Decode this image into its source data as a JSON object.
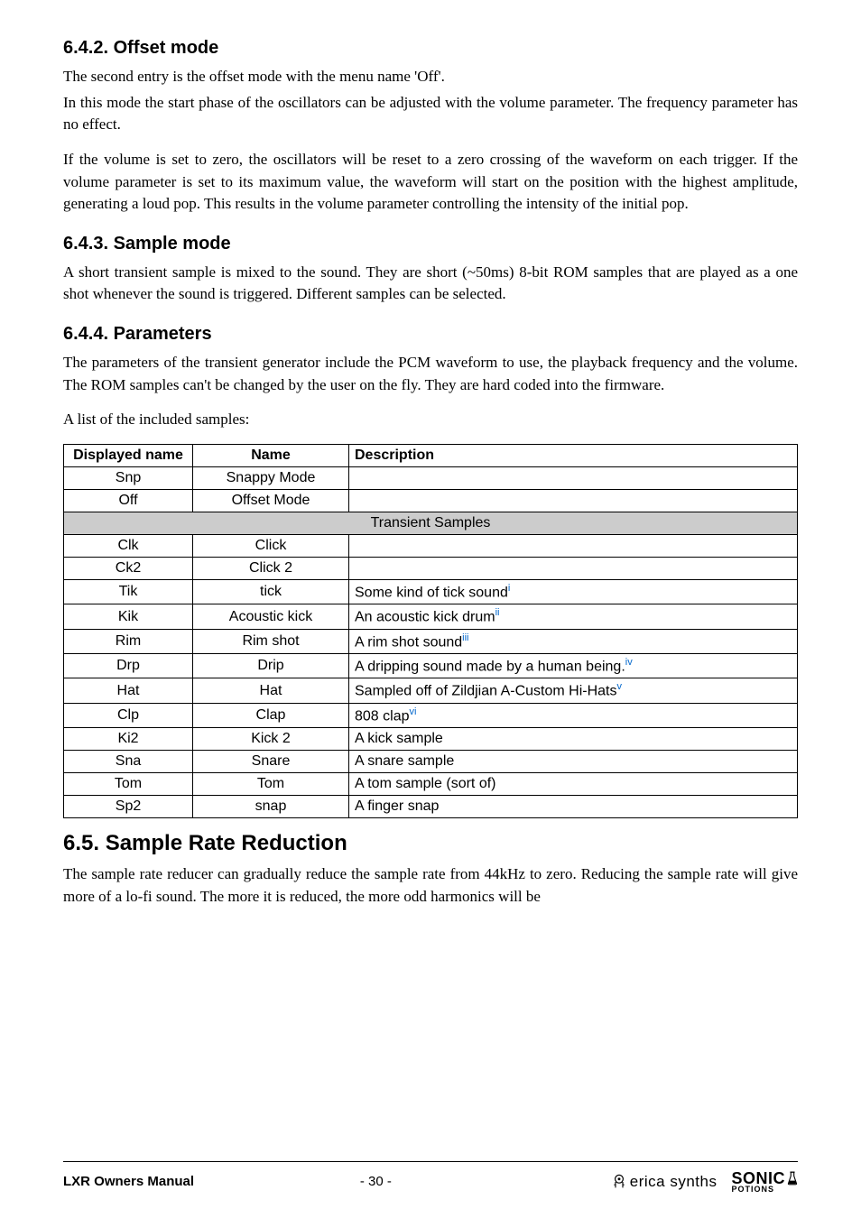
{
  "sections": {
    "s642": {
      "heading": "6.4.2. Offset mode",
      "p1": "The second entry is the offset mode with the menu name 'Off'.",
      "p2": "In this mode the start phase of the oscillators can be adjusted with the volume parameter. The frequency parameter has no effect.",
      "p3": "If the volume is set to zero, the oscillators will be reset to a zero crossing of the waveform on each trigger. If the volume parameter is set to its maximum value, the waveform will start on the position with the highest amplitude, generating a loud pop. This results in the volume parameter controlling the intensity of the initial pop."
    },
    "s643": {
      "heading": "6.4.3. Sample mode",
      "p1": "A short transient sample is mixed to the sound. They are short (~50ms) 8-bit ROM samples that are played as a one shot whenever the sound is triggered. Different samples can be selected."
    },
    "s644": {
      "heading": "6.4.4. Parameters",
      "p1": "The parameters of the transient generator include the PCM waveform to use, the playback frequency and the volume. The ROM samples can't be changed by the user on the fly. They are hard coded into the firmware.",
      "p2": "A list of the included samples:"
    },
    "s65": {
      "heading": "6.5.  Sample Rate Reduction",
      "p1": "The sample rate reducer can gradually reduce the sample rate from 44kHz to zero. Reducing the sample rate will give more of a lo-fi sound. The more it is reduced, the more odd harmonics will be"
    }
  },
  "table": {
    "header": {
      "displayed": "Displayed name",
      "name": "Name",
      "description": "Description"
    },
    "section_label": "Transient Samples",
    "rows_pre": [
      {
        "disp": "Snp",
        "name": "Snappy Mode",
        "desc": ""
      },
      {
        "disp": "Off",
        "name": "Offset Mode",
        "desc": ""
      }
    ],
    "rows_post": [
      {
        "disp": "Clk",
        "name": "Click",
        "desc": "",
        "note": ""
      },
      {
        "disp": "Ck2",
        "name": "Click 2",
        "desc": "",
        "note": ""
      },
      {
        "disp": "Tik",
        "name": "tick",
        "desc": "Some kind of tick sound",
        "note": "i"
      },
      {
        "disp": "Kik",
        "name": "Acoustic kick",
        "desc": "An acoustic kick drum",
        "note": "ii"
      },
      {
        "disp": "Rim",
        "name": "Rim shot",
        "desc": "A rim shot sound",
        "note": "iii"
      },
      {
        "disp": "Drp",
        "name": "Drip",
        "desc": "A dripping sound made by a human being.",
        "note": "iv"
      },
      {
        "disp": "Hat",
        "name": "Hat",
        "desc": "Sampled off of Zildjian A-Custom Hi-Hats",
        "note": "v"
      },
      {
        "disp": "Clp",
        "name": "Clap",
        "desc": "808 clap",
        "note": "vi"
      },
      {
        "disp": "Ki2",
        "name": "Kick 2",
        "desc": "A kick sample",
        "note": ""
      },
      {
        "disp": "Sna",
        "name": "Snare",
        "desc": "A snare sample",
        "note": ""
      },
      {
        "disp": "Tom",
        "name": "Tom",
        "desc": "A tom sample (sort of)",
        "note": ""
      },
      {
        "disp": "Sp2",
        "name": "snap",
        "desc": "A finger snap",
        "note": ""
      }
    ]
  },
  "footer": {
    "manual": "LXR Owners Manual",
    "page": "- 30 -",
    "erica": "erica synths",
    "sonic_top": "SONIC",
    "sonic_bot": "POTIONS"
  }
}
